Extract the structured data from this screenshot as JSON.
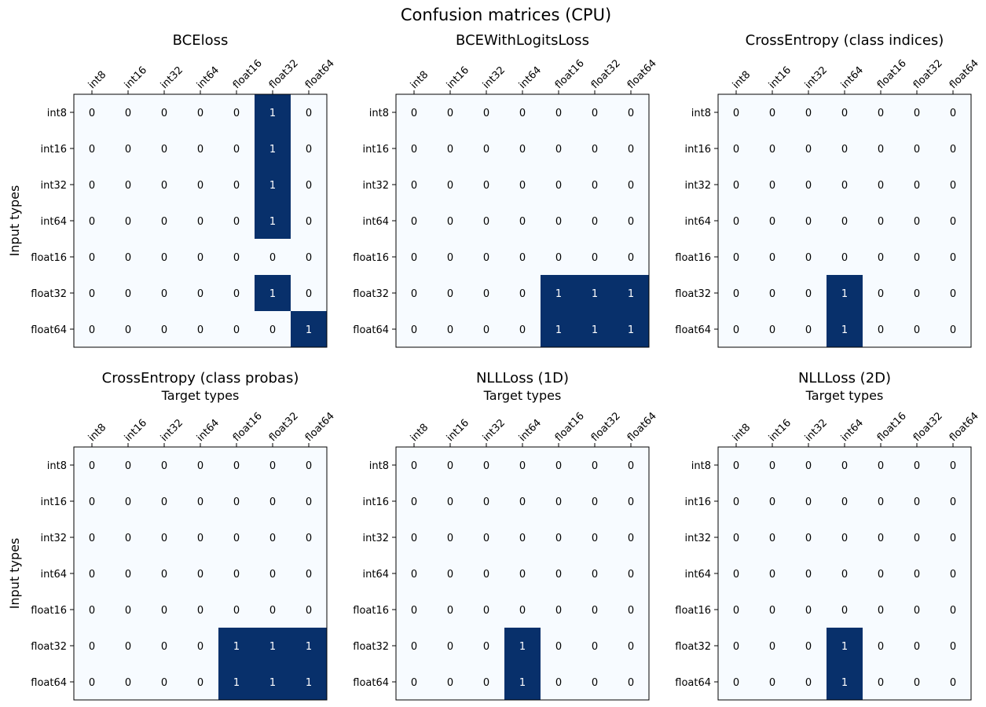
{
  "figure": {
    "title": "Confusion matrices (CPU)"
  },
  "colors": {
    "low": "#f7fbff",
    "high": "#08306b",
    "low_text": "#000000",
    "high_text": "#ffffff",
    "frame": "#000000"
  },
  "chart_data": [
    {
      "type": "heatmap",
      "title": "BCEloss",
      "xlabel": "",
      "ylabel": "Input types",
      "x_categories": [
        "int8",
        "int16",
        "int32",
        "int64",
        "float16",
        "float32",
        "float64"
      ],
      "y_categories": [
        "int8",
        "int16",
        "int32",
        "int64",
        "float16",
        "float32",
        "float64"
      ],
      "values": [
        [
          0,
          0,
          0,
          0,
          0,
          1,
          0
        ],
        [
          0,
          0,
          0,
          0,
          0,
          1,
          0
        ],
        [
          0,
          0,
          0,
          0,
          0,
          1,
          0
        ],
        [
          0,
          0,
          0,
          0,
          0,
          1,
          0
        ],
        [
          0,
          0,
          0,
          0,
          0,
          0,
          0
        ],
        [
          0,
          0,
          0,
          0,
          0,
          1,
          0
        ],
        [
          0,
          0,
          0,
          0,
          0,
          0,
          1
        ]
      ]
    },
    {
      "type": "heatmap",
      "title": "BCEWithLogitsLoss",
      "xlabel": "",
      "ylabel": "",
      "x_categories": [
        "int8",
        "int16",
        "int32",
        "int64",
        "float16",
        "float32",
        "float64"
      ],
      "y_categories": [
        "int8",
        "int16",
        "int32",
        "int64",
        "float16",
        "float32",
        "float64"
      ],
      "values": [
        [
          0,
          0,
          0,
          0,
          0,
          0,
          0
        ],
        [
          0,
          0,
          0,
          0,
          0,
          0,
          0
        ],
        [
          0,
          0,
          0,
          0,
          0,
          0,
          0
        ],
        [
          0,
          0,
          0,
          0,
          0,
          0,
          0
        ],
        [
          0,
          0,
          0,
          0,
          0,
          0,
          0
        ],
        [
          0,
          0,
          0,
          0,
          1,
          1,
          1
        ],
        [
          0,
          0,
          0,
          0,
          1,
          1,
          1
        ]
      ]
    },
    {
      "type": "heatmap",
      "title": "CrossEntropy (class indices)",
      "xlabel": "",
      "ylabel": "",
      "x_categories": [
        "int8",
        "int16",
        "int32",
        "int64",
        "float16",
        "float32",
        "float64"
      ],
      "y_categories": [
        "int8",
        "int16",
        "int32",
        "int64",
        "float16",
        "float32",
        "float64"
      ],
      "values": [
        [
          0,
          0,
          0,
          0,
          0,
          0,
          0
        ],
        [
          0,
          0,
          0,
          0,
          0,
          0,
          0
        ],
        [
          0,
          0,
          0,
          0,
          0,
          0,
          0
        ],
        [
          0,
          0,
          0,
          0,
          0,
          0,
          0
        ],
        [
          0,
          0,
          0,
          0,
          0,
          0,
          0
        ],
        [
          0,
          0,
          0,
          1,
          0,
          0,
          0
        ],
        [
          0,
          0,
          0,
          1,
          0,
          0,
          0
        ]
      ]
    },
    {
      "type": "heatmap",
      "title": "CrossEntropy (class probas)",
      "xlabel": "Target types",
      "ylabel": "Input types",
      "x_categories": [
        "int8",
        "int16",
        "int32",
        "int64",
        "float16",
        "float32",
        "float64"
      ],
      "y_categories": [
        "int8",
        "int16",
        "int32",
        "int64",
        "float16",
        "float32",
        "float64"
      ],
      "values": [
        [
          0,
          0,
          0,
          0,
          0,
          0,
          0
        ],
        [
          0,
          0,
          0,
          0,
          0,
          0,
          0
        ],
        [
          0,
          0,
          0,
          0,
          0,
          0,
          0
        ],
        [
          0,
          0,
          0,
          0,
          0,
          0,
          0
        ],
        [
          0,
          0,
          0,
          0,
          0,
          0,
          0
        ],
        [
          0,
          0,
          0,
          0,
          1,
          1,
          1
        ],
        [
          0,
          0,
          0,
          0,
          1,
          1,
          1
        ]
      ]
    },
    {
      "type": "heatmap",
      "title": "NLLLoss (1D)",
      "xlabel": "Target types",
      "ylabel": "",
      "x_categories": [
        "int8",
        "int16",
        "int32",
        "int64",
        "float16",
        "float32",
        "float64"
      ],
      "y_categories": [
        "int8",
        "int16",
        "int32",
        "int64",
        "float16",
        "float32",
        "float64"
      ],
      "values": [
        [
          0,
          0,
          0,
          0,
          0,
          0,
          0
        ],
        [
          0,
          0,
          0,
          0,
          0,
          0,
          0
        ],
        [
          0,
          0,
          0,
          0,
          0,
          0,
          0
        ],
        [
          0,
          0,
          0,
          0,
          0,
          0,
          0
        ],
        [
          0,
          0,
          0,
          0,
          0,
          0,
          0
        ],
        [
          0,
          0,
          0,
          1,
          0,
          0,
          0
        ],
        [
          0,
          0,
          0,
          1,
          0,
          0,
          0
        ]
      ]
    },
    {
      "type": "heatmap",
      "title": "NLLLoss (2D)",
      "xlabel": "Target types",
      "ylabel": "",
      "x_categories": [
        "int8",
        "int16",
        "int32",
        "int64",
        "float16",
        "float32",
        "float64"
      ],
      "y_categories": [
        "int8",
        "int16",
        "int32",
        "int64",
        "float16",
        "float32",
        "float64"
      ],
      "values": [
        [
          0,
          0,
          0,
          0,
          0,
          0,
          0
        ],
        [
          0,
          0,
          0,
          0,
          0,
          0,
          0
        ],
        [
          0,
          0,
          0,
          0,
          0,
          0,
          0
        ],
        [
          0,
          0,
          0,
          0,
          0,
          0,
          0
        ],
        [
          0,
          0,
          0,
          0,
          0,
          0,
          0
        ],
        [
          0,
          0,
          0,
          1,
          0,
          0,
          0
        ],
        [
          0,
          0,
          0,
          1,
          0,
          0,
          0
        ]
      ]
    }
  ]
}
